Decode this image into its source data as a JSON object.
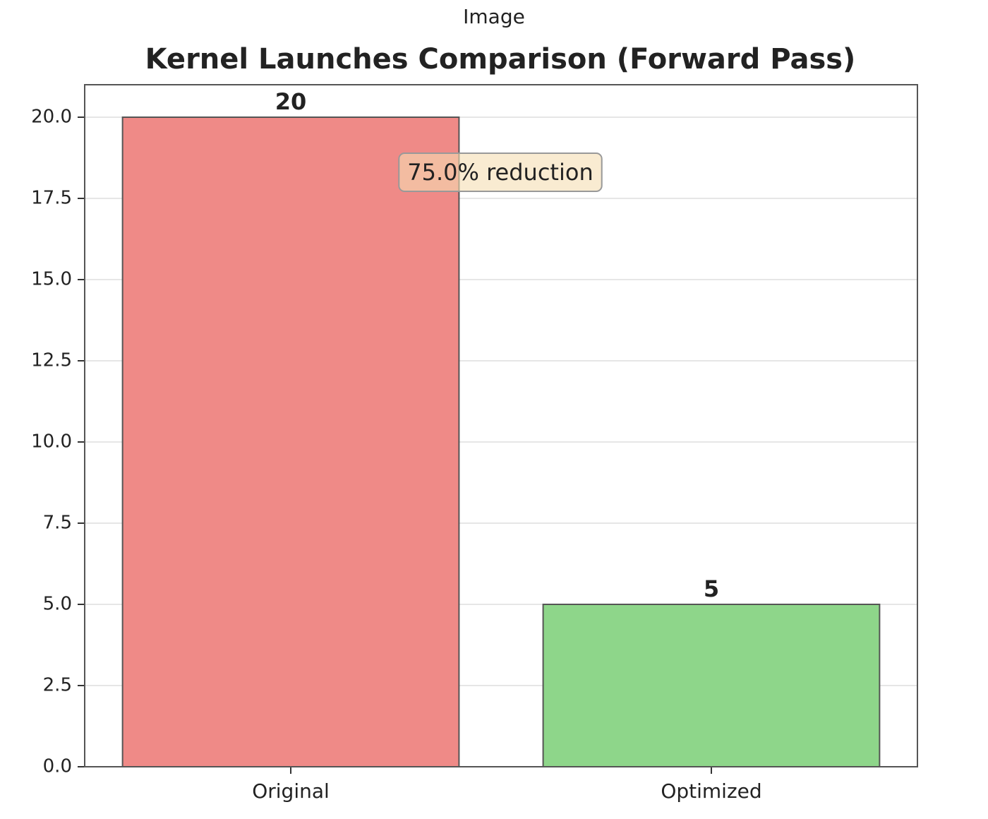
{
  "page_title": "Image",
  "chart_data": {
    "type": "bar",
    "title": "Kernel Launches Comparison (Forward Pass)",
    "categories": [
      "Original",
      "Optimized"
    ],
    "values": [
      20,
      5
    ],
    "colors": [
      "#ef8a87",
      "#8ed68a"
    ],
    "annotation": "75.0% reduction",
    "ylim": [
      0,
      21
    ],
    "yticks": [
      {
        "value": 0,
        "label": "0.0"
      },
      2.5,
      {
        "value": 5,
        "label": "5.0"
      },
      7.5,
      {
        "value": 10,
        "label": "10.0"
      },
      12.5,
      {
        "value": 15,
        "label": "15.0"
      },
      17.5,
      {
        "value": 20,
        "label": "20.0"
      }
    ],
    "grid": true
  }
}
